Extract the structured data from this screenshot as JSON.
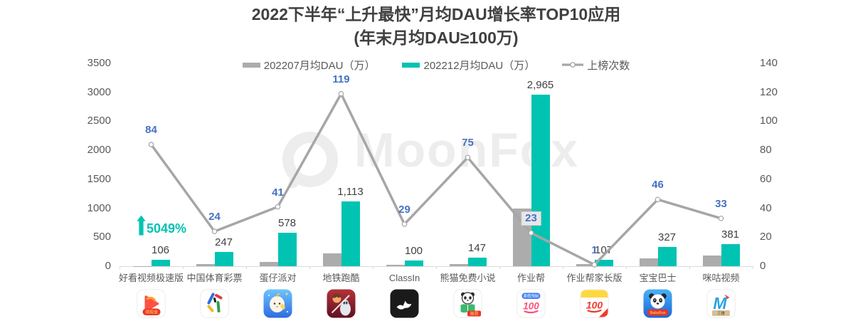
{
  "title": "2022下半年“上升最快”月均DAU增长率TOP10应用",
  "subtitle": "(年末月均DAU≥100万)",
  "watermark": "MoonFox",
  "annotation": {
    "text": "5049%",
    "target": "好看视频极速版",
    "color": "#00C3B2",
    "arrow": "up"
  },
  "colors": {
    "bar_jul": "#ACACAC",
    "bar_dec": "#00C3B2",
    "line": "#A6A6A6",
    "line_label": "#4472C4",
    "value_label": "#404040",
    "axis_text": "#595959",
    "axis_line": "#D9D9D9",
    "title_text": "#404040",
    "watermark": "#EDEDED"
  },
  "legend": {
    "items": [
      {
        "label": "202207月均DAU（万）",
        "swatch": "bar",
        "color": "#ACACAC"
      },
      {
        "label": "202212月均DAU（万）",
        "swatch": "bar",
        "color": "#00C3B2"
      },
      {
        "label": "上榜次数",
        "swatch": "line",
        "color": "#A6A6A6"
      }
    ]
  },
  "chart_data": {
    "type": "bar",
    "subtype": "combo-bar-line-dual-axis",
    "categories": [
      "好看视频极速版",
      "中国体育彩票",
      "蛋仔派对",
      "地铁跑酷",
      "ClassIn",
      "熊猫免费小说",
      "作业帮",
      "作业帮家长版",
      "宝宝巴士",
      "咪咕视频"
    ],
    "series": [
      {
        "name": "202207月均DAU（万）",
        "type": "bar",
        "axis": "left",
        "color": "#ACACAC",
        "labeled": false,
        "values": [
          2,
          40,
          75,
          220,
          25,
          40,
          1000,
          35,
          135,
          180
        ]
      },
      {
        "name": "202212月均DAU（万）",
        "type": "bar",
        "axis": "left",
        "color": "#00C3B2",
        "labeled": true,
        "values": [
          106,
          247,
          578,
          1113,
          100,
          147,
          2965,
          107,
          327,
          381
        ]
      },
      {
        "name": "上榜次数",
        "type": "line",
        "axis": "right",
        "color": "#A6A6A6",
        "labeled": true,
        "label_boxed_index": 6,
        "values": [
          84,
          24,
          41,
          119,
          29,
          75,
          23,
          1,
          46,
          33
        ]
      }
    ],
    "left_axis": {
      "min": 0,
      "max": 3500,
      "step": 500
    },
    "right_axis": {
      "min": 0,
      "max": 140,
      "step": 20
    },
    "grid": false,
    "legend_position": "top"
  },
  "apps": [
    {
      "label": "好看视频极速版",
      "icon": {
        "type": "haokan",
        "ribbon": "领现金"
      }
    },
    {
      "label": "中国体育彩票",
      "icon": {
        "type": "sports-lottery"
      }
    },
    {
      "label": "蛋仔派对",
      "icon": {
        "type": "danzai"
      }
    },
    {
      "label": "地铁跑酷",
      "icon": {
        "type": "subway"
      }
    },
    {
      "label": "ClassIn",
      "icon": {
        "type": "classin"
      }
    },
    {
      "label": "熊猫免费小说",
      "icon": {
        "type": "panda-novel",
        "ribbon": "脑洞"
      }
    },
    {
      "label": "作业帮",
      "icon": {
        "type": "zuoyebang",
        "banner": "寒假预制",
        "text": "100"
      }
    },
    {
      "label": "作业帮家长版",
      "icon": {
        "type": "zuoyebang-parent",
        "text": "100"
      }
    },
    {
      "label": "宝宝巴士",
      "icon": {
        "type": "babybus",
        "ribbon": "BabyBus"
      }
    },
    {
      "label": "咪咕视频",
      "icon": {
        "type": "migu",
        "text": "M",
        "banner": "三体"
      }
    }
  ]
}
